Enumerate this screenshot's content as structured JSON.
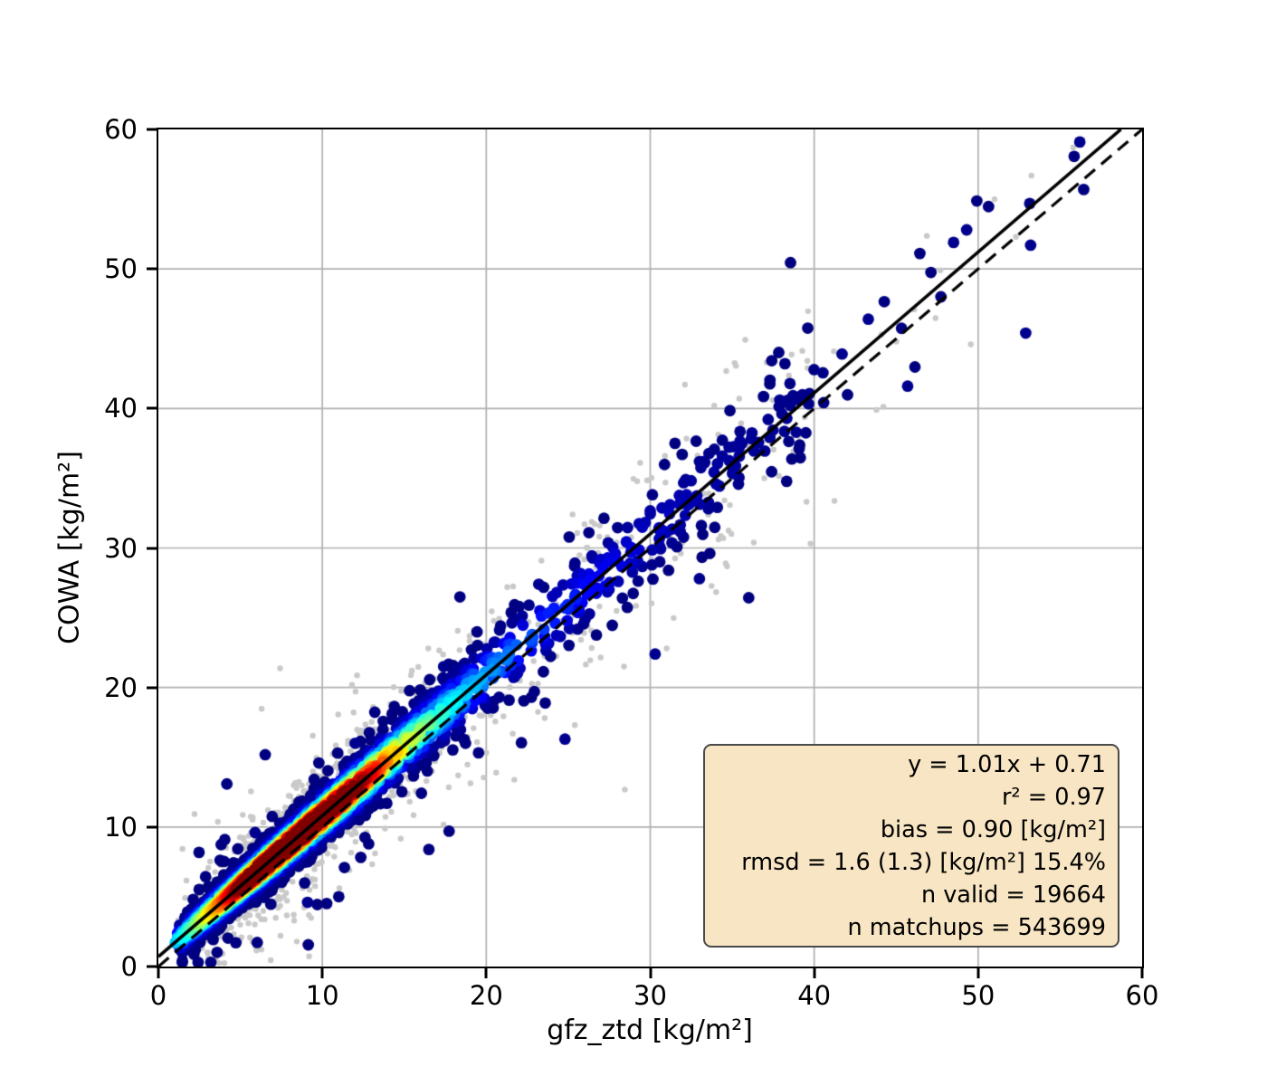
{
  "figure": {
    "background": "#ffffff"
  },
  "chart_data": {
    "type": "scatter",
    "title": "",
    "xlabel": "gfz_ztd [kg/m²]",
    "ylabel": "COWA [kg/m²]",
    "xlim": [
      0,
      60
    ],
    "ylim": [
      0,
      60
    ],
    "x_ticks": [
      0,
      10,
      20,
      30,
      40,
      50,
      60
    ],
    "y_ticks": [
      0,
      10,
      20,
      30,
      40,
      50,
      60
    ],
    "grid": true,
    "grid_color": "#b0b0b0",
    "legend": "none",
    "fit_line": {
      "label": "y = 1.01x + 0.71",
      "slope": 1.01,
      "intercept": 0.71,
      "color": "#000000",
      "style": "solid"
    },
    "identity_line": {
      "slope": 1,
      "intercept": 0,
      "color": "#000000",
      "style": "dashed"
    },
    "stats": [
      "y = 1.01x + 0.71",
      "r² = 0.97",
      "bias = 0.90 [kg/m²]",
      "rmsd = 1.6 (1.3) [kg/m²] 15.4%",
      "n valid = 19664",
      "n matchups = 543699"
    ],
    "stats_values": {
      "slope": 1.01,
      "intercept": 0.71,
      "r2": 0.97,
      "bias_kg_m2": 0.9,
      "rmsd_kg_m2": 1.6,
      "rmsd_unbiased_kg_m2": 1.3,
      "rmsd_percent": 15.4,
      "n_valid": 19664,
      "n_matchups": 543699
    },
    "colormap": "jet",
    "point_style": {
      "valid_radius_px": 6.4,
      "matchup_radius_px": 3.2,
      "matchup_color": "#c9c9c9"
    },
    "density_cloud": {
      "seed_valid": 20240601,
      "seed_matchup": 987654,
      "n_valid_drawn": 2600,
      "n_matchup_drawn": 1400,
      "x_gamma_scale": 4.2,
      "x_offset": 0.9,
      "sigma_base": 0.55,
      "sigma_slope": 0.045
    },
    "outliers_navy": [
      [
        56.2,
        59.1
      ],
      [
        53.2,
        51.7
      ],
      [
        52.9,
        45.4
      ],
      [
        49.3,
        52.8
      ],
      [
        48.5,
        51.9
      ],
      [
        45.7,
        41.6
      ],
      [
        43.3,
        46.4
      ],
      [
        41.7,
        43.9
      ],
      [
        38.9,
        38.3
      ],
      [
        37.9,
        40.6
      ],
      [
        30.3,
        22.4
      ],
      [
        33.0,
        27.8
      ],
      [
        24.8,
        16.3
      ],
      [
        23.2,
        27.4
      ],
      [
        17.4,
        21.5
      ],
      [
        12.0,
        16.0
      ],
      [
        9.1,
        4.6
      ],
      [
        5.9,
        9.6
      ]
    ],
    "outliers_gray": [
      [
        55.8,
        58.7
      ],
      [
        52.3,
        52.3
      ],
      [
        51.0,
        55.0
      ],
      [
        47.7,
        49.9
      ],
      [
        46.1,
        47.1
      ],
      [
        44.1,
        45.3
      ],
      [
        41.2,
        44.1
      ],
      [
        39.6,
        42.9
      ],
      [
        37.1,
        43.3
      ],
      [
        43.8,
        39.9
      ],
      [
        31.0,
        22.8
      ],
      [
        28.4,
        21.5
      ],
      [
        34.6,
        28.9
      ],
      [
        25.4,
        17.3
      ],
      [
        20.6,
        13.9
      ],
      [
        30.9,
        36.6
      ]
    ],
    "box_style": {
      "facecolor": "#f7e5c3",
      "edgecolor": "#4a4a4a"
    }
  }
}
